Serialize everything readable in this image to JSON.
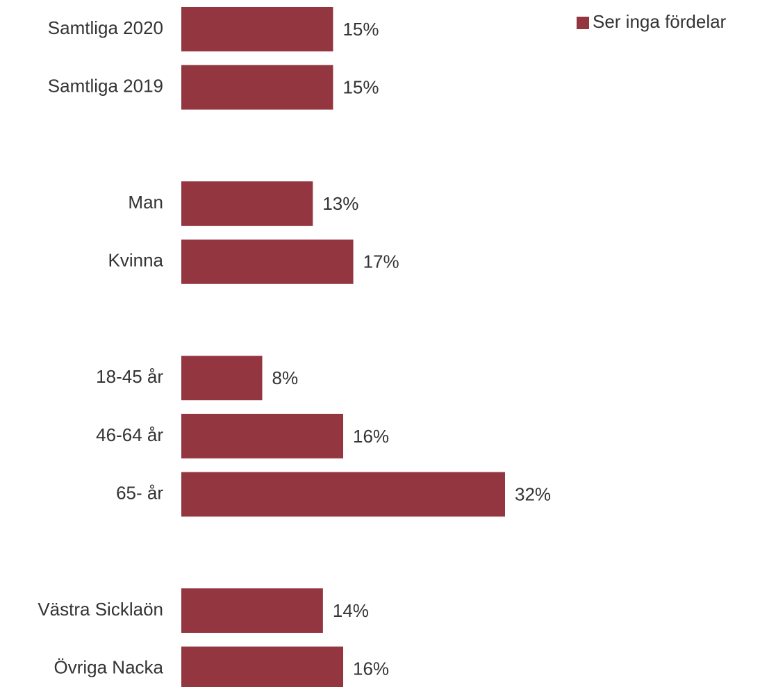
{
  "chart_data": {
    "type": "hbar",
    "categories": [
      "Samtliga 2020",
      "Samtliga 2019",
      null,
      "Man",
      "Kvinna",
      null,
      "18-45 år",
      "46-64 år",
      "65- år",
      null,
      "Västra Sicklaön",
      "Övriga Nacka"
    ],
    "series": [
      {
        "name": "Ser inga fördelar",
        "color": "#943640",
        "values": [
          15,
          15,
          null,
          13,
          17,
          null,
          8,
          16,
          32,
          null,
          14,
          16
        ],
        "value_labels": [
          "15%",
          "15%",
          null,
          "13%",
          "17%",
          null,
          "8%",
          "16%",
          "32%",
          null,
          "14%",
          "16%"
        ]
      }
    ],
    "legend": "top-right"
  }
}
